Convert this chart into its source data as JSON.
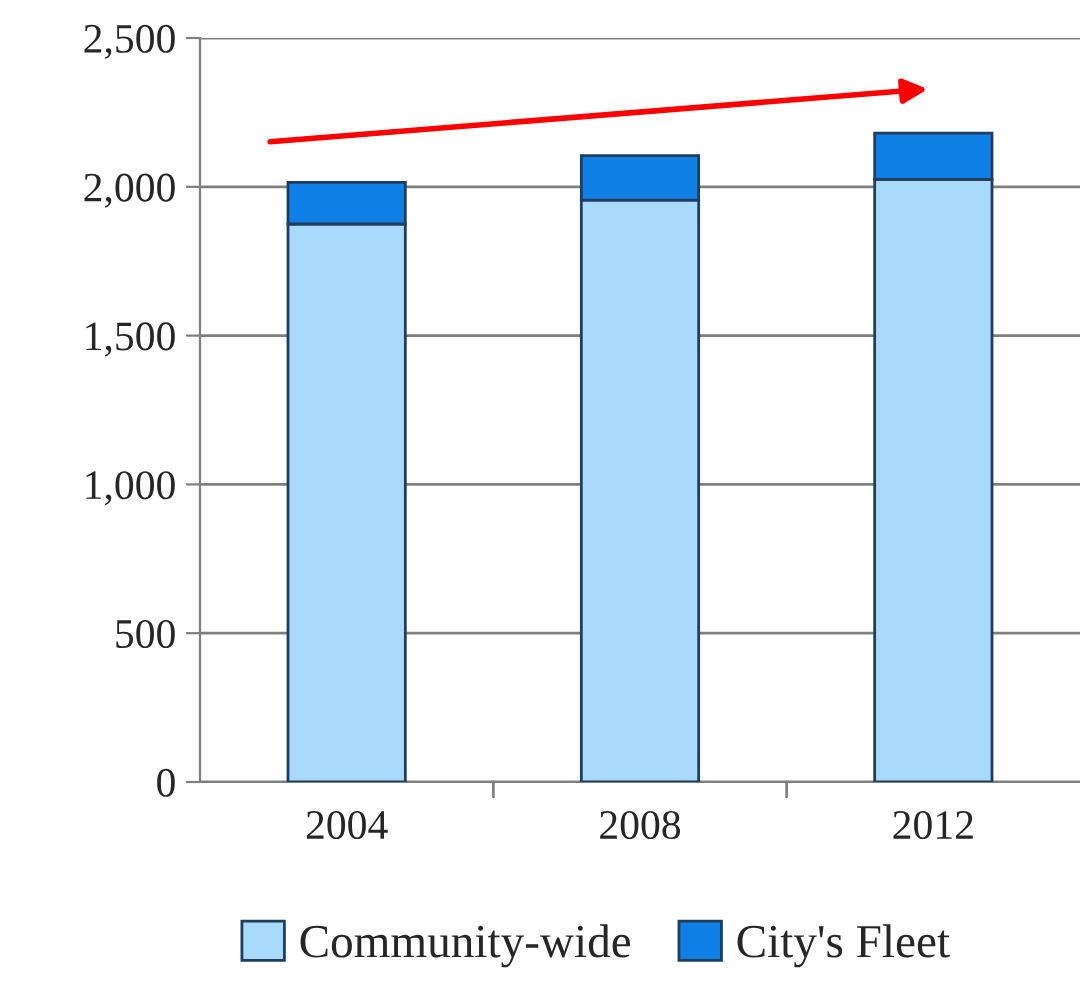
{
  "chart_data": {
    "type": "bar",
    "stacked": true,
    "categories": [
      "2004",
      "2008",
      "2012"
    ],
    "series": [
      {
        "name": "Community-wide",
        "color": "#a9d9fb",
        "values": [
          1875,
          1955,
          2025
        ]
      },
      {
        "name": "City's Fleet",
        "color": "#1180e6",
        "values": [
          140,
          150,
          155
        ]
      }
    ],
    "ylim": [
      0,
      2500
    ],
    "yticks": [
      0,
      500,
      {
        "value": 1000,
        "label": "1,000"
      },
      {
        "value": 1500,
        "label": "1,500"
      },
      {
        "value": 2000,
        "label": "2,000"
      },
      {
        "value": 2500,
        "label": "2,500"
      }
    ],
    "grid": "y",
    "legend": "bottom"
  }
}
